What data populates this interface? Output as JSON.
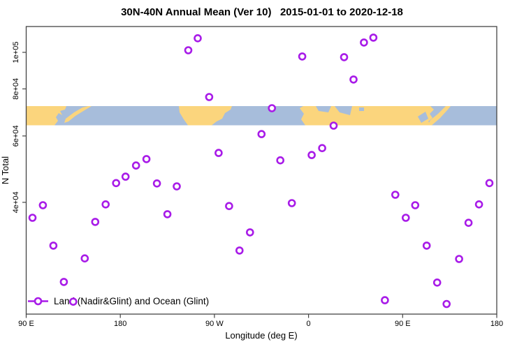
{
  "chart_data": {
    "type": "scatter",
    "title": "30N-40N Annual Mean (Ver 10)   2015-01-01 to 2020-12-18",
    "xlabel": "Longitude (deg E)",
    "ylabel": "N Total",
    "x_scale": "linear",
    "y_scale": "log",
    "x_axis": {
      "range_deg_unwrapped": [
        90,
        540
      ],
      "ticks": [
        {
          "lon": 90,
          "label": "90 E"
        },
        {
          "lon": 180,
          "label": "180"
        },
        {
          "lon": 270,
          "label": "90 W"
        },
        {
          "lon": 360,
          "label": "0"
        },
        {
          "lon": 450,
          "label": "90 E"
        },
        {
          "lon": 540,
          "label": "180"
        }
      ]
    },
    "y_axis": {
      "range": [
        20000,
        117000
      ],
      "ticks": [
        {
          "value": 100000,
          "label": "1e+05"
        },
        {
          "value": 80000,
          "label": "8e+04"
        },
        {
          "value": 60000,
          "label": "6e+04"
        },
        {
          "value": 40000,
          "label": "4e+04"
        }
      ]
    },
    "legend": {
      "label": "Land (Nadir&Glint) and Ocean (Glint)",
      "position": "bottom-left",
      "marker": "open-circle-on-line"
    },
    "series": [
      {
        "name": "Land (Nadir&Glint) and Ocean (Glint)",
        "points": [
          [
            96,
            36400
          ],
          [
            106,
            39300
          ],
          [
            116,
            30700
          ],
          [
            126,
            24600
          ],
          [
            135,
            21800
          ],
          [
            146,
            28400
          ],
          [
            156,
            35500
          ],
          [
            166,
            39500
          ],
          [
            176,
            45000
          ],
          [
            185,
            46800
          ],
          [
            195,
            50100
          ],
          [
            205,
            52100
          ],
          [
            215,
            44900
          ],
          [
            225,
            37200
          ],
          [
            234,
            44100
          ],
          [
            245,
            101300
          ],
          [
            254,
            109000
          ],
          [
            265,
            76100
          ],
          [
            274,
            54100
          ],
          [
            284,
            39100
          ],
          [
            294,
            29800
          ],
          [
            304,
            33300
          ],
          [
            315,
            60700
          ],
          [
            325,
            71100
          ],
          [
            333,
            51700
          ],
          [
            344,
            39800
          ],
          [
            354,
            97500
          ],
          [
            363,
            53400
          ],
          [
            373,
            55700
          ],
          [
            384,
            63900
          ],
          [
            394,
            97100
          ],
          [
            403,
            84700
          ],
          [
            413,
            106200
          ],
          [
            422,
            109400
          ],
          [
            433,
            22000
          ],
          [
            443,
            41900
          ],
          [
            453,
            36400
          ],
          [
            462,
            39300
          ],
          [
            473,
            30700
          ],
          [
            483,
            24500
          ],
          [
            492,
            21500
          ],
          [
            504,
            28300
          ],
          [
            513,
            35300
          ],
          [
            523,
            39500
          ],
          [
            533,
            45000
          ]
        ]
      }
    ],
    "map_band": {
      "description": "30N-40N latitude world-map strip drawn across the plot",
      "n_value_top": 72000,
      "n_value_bottom": 64000,
      "regions": [
        "Asia & Japan",
        "Pacific Ocean",
        "North America",
        "Atlantic Ocean",
        "North Africa-Middle East-Asia",
        "Japan",
        "Pacific Ocean"
      ]
    }
  },
  "colors": {
    "point": "#A81BE8",
    "land": "#FBD57D",
    "ocean": "#A7BDDB",
    "axis": "#444444",
    "background": "#FFFFFF"
  }
}
